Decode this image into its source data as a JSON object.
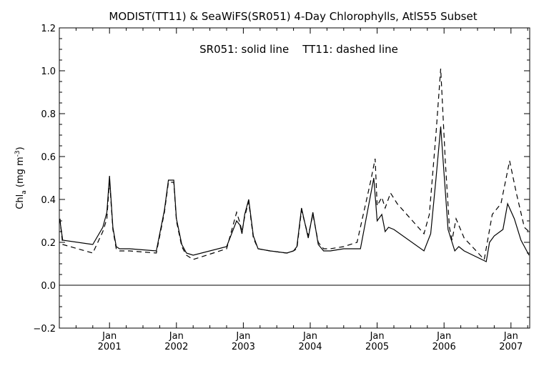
{
  "chart_data": {
    "type": "line",
    "title": "MODIST(TT11) & SeaWiFS(SR051) 4-Day Chlorophylls, AtlS55 Subset",
    "annotation": "SR051: solid line    TT11: dashed line",
    "ylabel": "Chl_a (mg m^-3)",
    "ylabel_parts": {
      "base": "Chl",
      "sub": "a",
      "unit_open": "(mg m",
      "unit_sup": "-3",
      "unit_close": ")"
    },
    "xlabel": "",
    "xlim": [
      2000.25,
      2007.28
    ],
    "ylim": [
      -0.2,
      1.2
    ],
    "yticks": [
      -0.2,
      0.0,
      0.2,
      0.4,
      0.6,
      0.8,
      1.0,
      1.2
    ],
    "ytick_labels": [
      "−0.2",
      "0.0",
      "0.2",
      "0.4",
      "0.6",
      "0.8",
      "1.0",
      "1.2"
    ],
    "xticks": [
      2001,
      2002,
      2003,
      2004,
      2005,
      2006,
      2007
    ],
    "xtick_month_label": "Jan",
    "xtick_year_labels": [
      "2001",
      "2002",
      "2003",
      "2004",
      "2005",
      "2006",
      "2007"
    ],
    "zero_line": 0.0,
    "series": [
      {
        "name": "SR051",
        "style": "solid",
        "color": "#000000",
        "points": [
          [
            2000.26,
            0.3
          ],
          [
            2000.3,
            0.21
          ],
          [
            2000.75,
            0.19
          ],
          [
            2000.9,
            0.27
          ],
          [
            2000.96,
            0.34
          ],
          [
            2001.0,
            0.51
          ],
          [
            2001.05,
            0.27
          ],
          [
            2001.1,
            0.18
          ],
          [
            2001.15,
            0.17
          ],
          [
            2001.3,
            0.17
          ],
          [
            2001.7,
            0.16
          ],
          [
            2001.82,
            0.35
          ],
          [
            2001.88,
            0.49
          ],
          [
            2001.96,
            0.49
          ],
          [
            2002.0,
            0.31
          ],
          [
            2002.08,
            0.19
          ],
          [
            2002.15,
            0.15
          ],
          [
            2002.25,
            0.14
          ],
          [
            2002.75,
            0.18
          ],
          [
            2002.9,
            0.3
          ],
          [
            2002.95,
            0.28
          ],
          [
            2002.98,
            0.24
          ],
          [
            2003.02,
            0.33
          ],
          [
            2003.08,
            0.4
          ],
          [
            2003.15,
            0.23
          ],
          [
            2003.22,
            0.17
          ],
          [
            2003.4,
            0.16
          ],
          [
            2003.65,
            0.15
          ],
          [
            2003.75,
            0.16
          ],
          [
            2003.8,
            0.18
          ],
          [
            2003.87,
            0.36
          ],
          [
            2003.97,
            0.22
          ],
          [
            2004.04,
            0.34
          ],
          [
            2004.12,
            0.19
          ],
          [
            2004.2,
            0.16
          ],
          [
            2004.3,
            0.16
          ],
          [
            2004.5,
            0.17
          ],
          [
            2004.75,
            0.17
          ],
          [
            2004.95,
            0.5
          ],
          [
            2005.0,
            0.3
          ],
          [
            2005.07,
            0.33
          ],
          [
            2005.12,
            0.25
          ],
          [
            2005.17,
            0.27
          ],
          [
            2005.25,
            0.26
          ],
          [
            2005.7,
            0.16
          ],
          [
            2005.8,
            0.24
          ],
          [
            2005.88,
            0.5
          ],
          [
            2005.95,
            0.74
          ],
          [
            2006.0,
            0.52
          ],
          [
            2006.06,
            0.26
          ],
          [
            2006.12,
            0.2
          ],
          [
            2006.16,
            0.16
          ],
          [
            2006.22,
            0.18
          ],
          [
            2006.3,
            0.16
          ],
          [
            2006.63,
            0.11
          ],
          [
            2006.68,
            0.2
          ],
          [
            2006.75,
            0.23
          ],
          [
            2006.88,
            0.26
          ],
          [
            2006.95,
            0.38
          ],
          [
            2007.05,
            0.31
          ],
          [
            2007.15,
            0.21
          ],
          [
            2007.27,
            0.14
          ]
        ]
      },
      {
        "name": "TT11",
        "style": "dashed",
        "color": "#000000",
        "points": [
          [
            2000.26,
            0.31
          ],
          [
            2000.3,
            0.19
          ],
          [
            2000.75,
            0.15
          ],
          [
            2000.9,
            0.25
          ],
          [
            2000.96,
            0.31
          ],
          [
            2001.0,
            0.49
          ],
          [
            2001.05,
            0.26
          ],
          [
            2001.1,
            0.17
          ],
          [
            2001.15,
            0.16
          ],
          [
            2001.3,
            0.16
          ],
          [
            2001.7,
            0.15
          ],
          [
            2001.82,
            0.34
          ],
          [
            2001.88,
            0.48
          ],
          [
            2001.96,
            0.48
          ],
          [
            2002.0,
            0.3
          ],
          [
            2002.08,
            0.18
          ],
          [
            2002.15,
            0.14
          ],
          [
            2002.25,
            0.12
          ],
          [
            2002.75,
            0.17
          ],
          [
            2002.9,
            0.34
          ],
          [
            2002.95,
            0.29
          ],
          [
            2002.98,
            0.25
          ],
          [
            2003.02,
            0.32
          ],
          [
            2003.08,
            0.39
          ],
          [
            2003.15,
            0.22
          ],
          [
            2003.22,
            0.17
          ],
          [
            2003.4,
            0.16
          ],
          [
            2003.65,
            0.15
          ],
          [
            2003.75,
            0.16
          ],
          [
            2003.8,
            0.17
          ],
          [
            2003.87,
            0.35
          ],
          [
            2003.97,
            0.23
          ],
          [
            2004.04,
            0.33
          ],
          [
            2004.12,
            0.2
          ],
          [
            2004.2,
            0.17
          ],
          [
            2004.3,
            0.17
          ],
          [
            2004.5,
            0.18
          ],
          [
            2004.7,
            0.2
          ],
          [
            2004.9,
            0.48
          ],
          [
            2004.97,
            0.59
          ],
          [
            2005.0,
            0.37
          ],
          [
            2005.07,
            0.41
          ],
          [
            2005.12,
            0.36
          ],
          [
            2005.2,
            0.43
          ],
          [
            2005.3,
            0.38
          ],
          [
            2005.7,
            0.24
          ],
          [
            2005.78,
            0.33
          ],
          [
            2005.88,
            0.71
          ],
          [
            2005.95,
            1.01
          ],
          [
            2006.02,
            0.57
          ],
          [
            2006.08,
            0.27
          ],
          [
            2006.12,
            0.21
          ],
          [
            2006.18,
            0.31
          ],
          [
            2006.3,
            0.22
          ],
          [
            2006.6,
            0.12
          ],
          [
            2006.72,
            0.33
          ],
          [
            2006.85,
            0.38
          ],
          [
            2006.98,
            0.58
          ],
          [
            2007.08,
            0.43
          ],
          [
            2007.2,
            0.27
          ],
          [
            2007.27,
            0.25
          ]
        ]
      }
    ]
  }
}
